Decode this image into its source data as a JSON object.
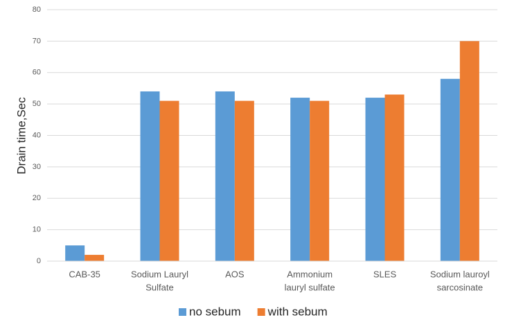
{
  "chart_data": {
    "type": "bar",
    "y_label": "Drain time,Sec",
    "categories": [
      [
        "CAB-35"
      ],
      [
        "Sodium Lauryl",
        "Sulfate"
      ],
      [
        "AOS"
      ],
      [
        "Ammonium",
        "lauryl sulfate"
      ],
      [
        "SLES"
      ],
      [
        "Sodium lauroyl",
        "sarcosinate"
      ]
    ],
    "series": [
      {
        "name": "no sebum",
        "color": "#5b9bd5",
        "values": [
          5,
          54,
          54,
          52,
          52,
          58
        ]
      },
      {
        "name": "with sebum",
        "color": "#ed7d31",
        "values": [
          2,
          51,
          51,
          51,
          53,
          70
        ]
      }
    ],
    "ylim": [
      0,
      80
    ],
    "yticks": [
      0,
      10,
      20,
      30,
      40,
      50,
      60,
      70,
      80
    ],
    "grid": true,
    "legend": "bottom"
  }
}
